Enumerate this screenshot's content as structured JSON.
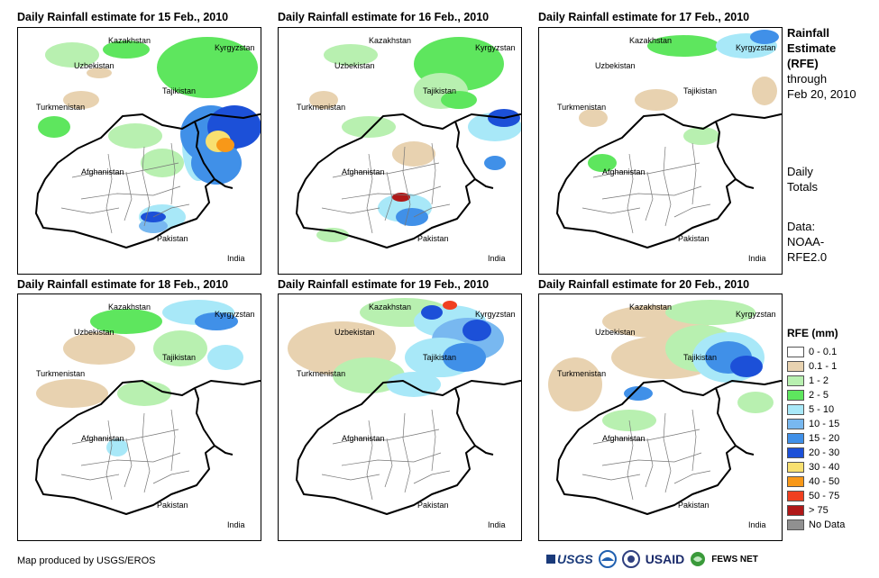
{
  "panels": [
    {
      "title": "Daily Rainfall estimate for 15 Feb., 2010"
    },
    {
      "title": "Daily Rainfall estimate for 16 Feb., 2010"
    },
    {
      "title": "Daily Rainfall estimate for 17 Feb., 2010"
    },
    {
      "title": "Daily Rainfall estimate for 18 Feb., 2010"
    },
    {
      "title": "Daily Rainfall estimate for 19 Feb., 2010"
    },
    {
      "title": "Daily Rainfall estimate for 20 Feb., 2010"
    }
  ],
  "map_labels": {
    "kazakhstan": "Kazakhstan",
    "kyrgyzstan": "Kyrgyzstan",
    "uzbekistan": "Uzbekistan",
    "tajikistan": "Tajikistan",
    "turkmenistan": "Turkmenistan",
    "afghanistan": "Afghanistan",
    "pakistan": "Pakistan",
    "india": "India"
  },
  "sidebar": {
    "title_line1": "Rainfall",
    "title_line2": "Estimate",
    "title_line3": "(RFE)",
    "through_line1": "through",
    "through_line2": "Feb 20, 2010",
    "daily_line1": "Daily",
    "daily_line2": "Totals",
    "data_line1": "Data:",
    "data_line2": "NOAA-",
    "data_line3": "RFE2.0"
  },
  "legend": {
    "title": "RFE (mm)",
    "items": [
      {
        "label": "0 - 0.1",
        "color": "#ffffff"
      },
      {
        "label": "0.1 - 1",
        "color": "#e8d2b0"
      },
      {
        "label": "1 - 2",
        "color": "#b8f0b0"
      },
      {
        "label": "2 - 5",
        "color": "#5ee65e"
      },
      {
        "label": "5 - 10",
        "color": "#a8e8f8"
      },
      {
        "label": "10 - 15",
        "color": "#78b8f0"
      },
      {
        "label": "15 - 20",
        "color": "#4090e8"
      },
      {
        "label": "20 - 30",
        "color": "#1c50d8"
      },
      {
        "label": "30 - 40",
        "color": "#f8e070"
      },
      {
        "label": "40 - 50",
        "color": "#f89818"
      },
      {
        "label": "50 - 75",
        "color": "#f04020"
      },
      {
        "label": "> 75",
        "color": "#b01818"
      },
      {
        "label": "No Data",
        "color": "#909090"
      }
    ]
  },
  "footer": {
    "credit": "Map produced by USGS/EROS",
    "logo_usgs": "USGS",
    "logo_usaid": "USAID",
    "logo_fewsnet": "FEWS NET"
  }
}
